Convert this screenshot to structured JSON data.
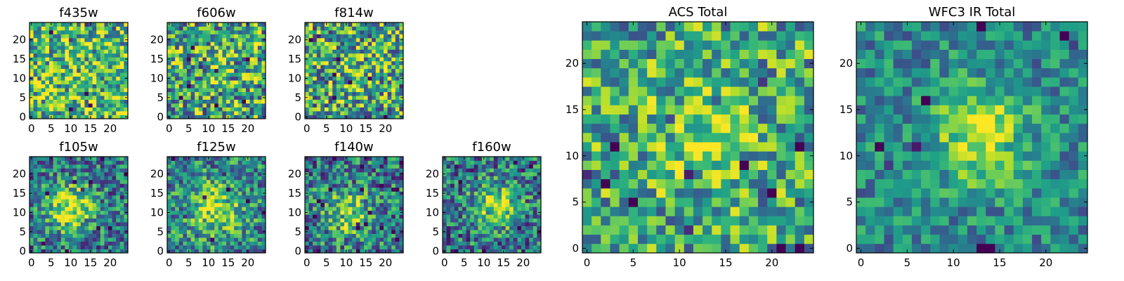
{
  "chart_data": [
    {
      "type": "heatmap",
      "title": "f435w",
      "x_ticks": [
        0,
        5,
        10,
        15,
        20
      ],
      "y_ticks": [
        0,
        5,
        10,
        15,
        20
      ],
      "xlim": [
        -0.5,
        24.5
      ],
      "ylim": [
        -0.5,
        24.5
      ],
      "grid_size": [
        25,
        25
      ],
      "colormap": "viridis",
      "pattern": "uniform noise, high-valued background"
    },
    {
      "type": "heatmap",
      "title": "f606w",
      "x_ticks": [
        0,
        5,
        10,
        15,
        20
      ],
      "y_ticks": [
        0,
        5,
        10,
        15,
        20
      ],
      "xlim": [
        -0.5,
        24.5
      ],
      "ylim": [
        -0.5,
        24.5
      ],
      "grid_size": [
        25,
        25
      ],
      "colormap": "viridis",
      "pattern": "uniform noise"
    },
    {
      "type": "heatmap",
      "title": "f814w",
      "x_ticks": [
        0,
        5,
        10,
        15,
        20
      ],
      "y_ticks": [
        0,
        5,
        10,
        15,
        20
      ],
      "xlim": [
        -0.5,
        24.5
      ],
      "ylim": [
        -0.5,
        24.5
      ],
      "grid_size": [
        25,
        25
      ],
      "colormap": "viridis",
      "pattern": "noise with faint central source"
    },
    {
      "type": "heatmap",
      "title": "f105w",
      "x_ticks": [
        0,
        5,
        10,
        15,
        20
      ],
      "y_ticks": [
        0,
        5,
        10,
        15,
        20
      ],
      "xlim": [
        -0.5,
        24.5
      ],
      "ylim": [
        -0.5,
        24.5
      ],
      "grid_size": [
        25,
        25
      ],
      "colormap": "viridis",
      "pattern": "central source near (10, 11)"
    },
    {
      "type": "heatmap",
      "title": "f125w",
      "x_ticks": [
        0,
        5,
        10,
        15,
        20
      ],
      "y_ticks": [
        0,
        5,
        10,
        15,
        20
      ],
      "xlim": [
        -0.5,
        24.5
      ],
      "ylim": [
        -0.5,
        24.5
      ],
      "grid_size": [
        25,
        25
      ],
      "colormap": "viridis",
      "pattern": "central source near (12, 11)"
    },
    {
      "type": "heatmap",
      "title": "f140w",
      "x_ticks": [
        0,
        5,
        10,
        15,
        20
      ],
      "y_ticks": [
        0,
        5,
        10,
        15,
        20
      ],
      "xlim": [
        -0.5,
        24.5
      ],
      "ylim": [
        -0.5,
        24.5
      ],
      "grid_size": [
        25,
        25
      ],
      "colormap": "viridis",
      "pattern": "central source near (10, 10)"
    },
    {
      "type": "heatmap",
      "title": "f160w",
      "x_ticks": [
        0,
        5,
        10,
        15,
        20
      ],
      "y_ticks": [
        0,
        5,
        10,
        15,
        20
      ],
      "xlim": [
        -0.5,
        24.5
      ],
      "ylim": [
        -0.5,
        24.5
      ],
      "grid_size": [
        25,
        25
      ],
      "colormap": "viridis",
      "pattern": "central source near (13, 12)"
    },
    {
      "type": "heatmap",
      "title": "ACS Total",
      "x_ticks": [
        0,
        5,
        10,
        15,
        20
      ],
      "y_ticks": [
        0,
        5,
        10,
        15,
        20
      ],
      "xlim": [
        -0.5,
        24.5
      ],
      "ylim": [
        -0.5,
        24.5
      ],
      "grid_size": [
        25,
        25
      ],
      "colormap": "viridis",
      "pattern": "noise with faint central source near (12, 12)"
    },
    {
      "type": "heatmap",
      "title": "WFC3 IR Total",
      "x_ticks": [
        0,
        5,
        10,
        15,
        20
      ],
      "y_ticks": [
        0,
        5,
        10,
        15,
        20
      ],
      "xlim": [
        -0.5,
        24.5
      ],
      "ylim": [
        -0.5,
        24.5
      ],
      "grid_size": [
        25,
        25
      ],
      "colormap": "viridis",
      "pattern": "bright central source near (13, 12)"
    }
  ]
}
